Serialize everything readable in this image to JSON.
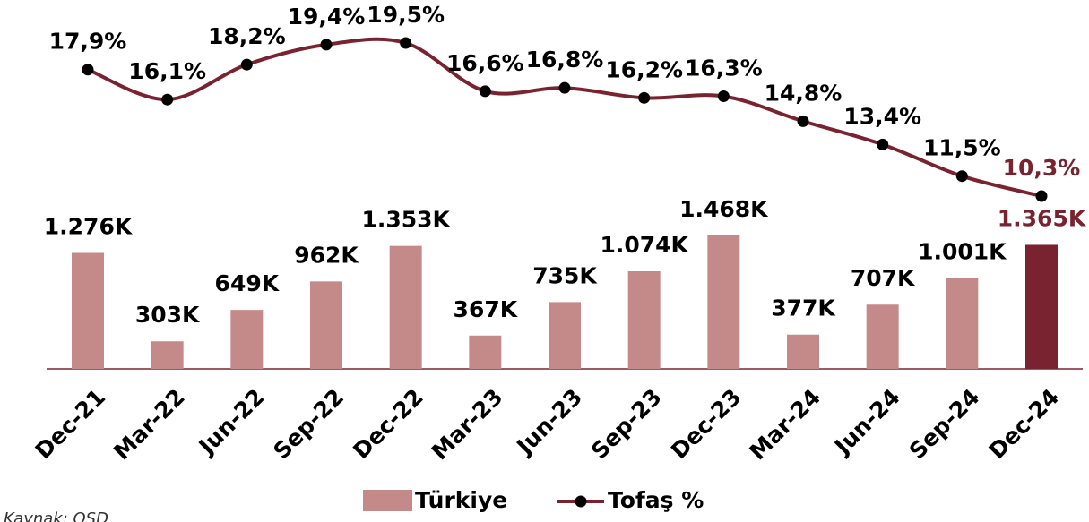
{
  "chart_data": {
    "type": "bar",
    "categories": [
      "Dec-21",
      "Mar-22",
      "Jun-22",
      "Sep-22",
      "Dec-22",
      "Mar-23",
      "Jun-23",
      "Sep-23",
      "Dec-23",
      "Mar-24",
      "Jun-24",
      "Sep-24",
      "Dec-24"
    ],
    "series": [
      {
        "name": "Türkiye",
        "type": "bar",
        "colors": [
          "#c48a8a",
          "#c48a8a",
          "#c48a8a",
          "#c48a8a",
          "#c48a8a",
          "#c48a8a",
          "#c48a8a",
          "#c48a8a",
          "#c48a8a",
          "#c48a8a",
          "#c48a8a",
          "#c48a8a",
          "#7a2330"
        ],
        "color": "#c48a8a",
        "values": [
          1276,
          303,
          649,
          962,
          1353,
          367,
          735,
          1074,
          1468,
          377,
          707,
          1001,
          1365
        ],
        "value_labels": [
          "1.276K",
          "303K",
          "649K",
          "962K",
          "1.353K",
          "367K",
          "735K",
          "1.074K",
          "1.468K",
          "377K",
          "707K",
          "1.001K",
          "1.365K"
        ]
      },
      {
        "name": "Tofaş %",
        "type": "line",
        "axis": "y2",
        "color": "#7a2330",
        "values": [
          17.9,
          16.1,
          18.2,
          19.4,
          19.5,
          16.6,
          16.8,
          16.2,
          16.3,
          14.8,
          13.4,
          11.5,
          10.3
        ],
        "value_labels": [
          "17,9%",
          "16,1%",
          "18,2%",
          "19,4%",
          "19,5%",
          "16,6%",
          "16,8%",
          "16,2%",
          "16,3%",
          "14,8%",
          "13,4%",
          "11,5%",
          "10,3%"
        ]
      }
    ],
    "source": "Kaynak: OSD"
  }
}
